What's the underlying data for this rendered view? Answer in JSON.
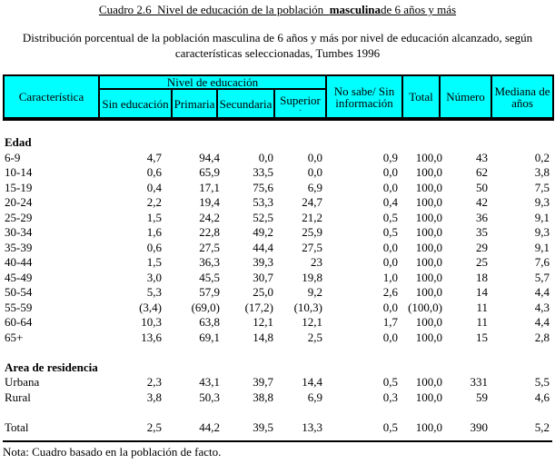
{
  "title": {
    "prefix": "Cuadro 2.6  Nivel de educación de la población  ",
    "bold": "masculina",
    "suffix": "de 6 años y más"
  },
  "subtitle": {
    "line1": "Distribución porcentual de la población masculina de 6 años y más por nivel de educación alcanzado, según",
    "line2": "características seleccionadas, Tumbes 1996"
  },
  "colors": {
    "header_bg": "#00FFFF",
    "border": "#000000",
    "text": "#000000"
  },
  "table": {
    "header": {
      "caracteristica": "Característica",
      "nivel_group": "Nivel de educación",
      "nivel_cols": [
        "Sin educación",
        "Primaria",
        "Secundaria",
        "Superior"
      ],
      "superior_dot": ".",
      "no_sabe": "No sabe/ Sin información",
      "total": "Total",
      "numero": "Número",
      "mediana": "Mediana de años"
    },
    "rows": [
      {
        "type": "section",
        "label": "Edad"
      },
      {
        "type": "data",
        "label": "6-9",
        "values": [
          "4,7",
          "94,4",
          "0,0",
          "0,0",
          "0,9",
          "100,0",
          "43",
          "0,2"
        ]
      },
      {
        "type": "data",
        "label": "10-14",
        "values": [
          "0,6",
          "65,9",
          "33,5",
          "0,0",
          "0,0",
          "100,0",
          "62",
          "3,8"
        ]
      },
      {
        "type": "data",
        "label": "15-19",
        "values": [
          "0,4",
          "17,1",
          "75,6",
          "6,9",
          "0,0",
          "100,0",
          "50",
          "7,5"
        ]
      },
      {
        "type": "data",
        "label": "20-24",
        "values": [
          "2,2",
          "19,4",
          "53,3",
          "24,7",
          "0,4",
          "100,0",
          "42",
          "9,3"
        ]
      },
      {
        "type": "data",
        "label": "25-29",
        "values": [
          "1,5",
          "24,2",
          "52,5",
          "21,2",
          "0,5",
          "100,0",
          "36",
          "9,1"
        ]
      },
      {
        "type": "data",
        "label": "30-34",
        "values": [
          "1,6",
          "22,8",
          "49,2",
          "25,9",
          "0,5",
          "100,0",
          "35",
          "9,3"
        ]
      },
      {
        "type": "data",
        "label": "35-39",
        "values": [
          "0,6",
          "27,5",
          "44,4",
          "27,5",
          "0,0",
          "100,0",
          "29",
          "9,1"
        ]
      },
      {
        "type": "data",
        "label": "40-44",
        "values": [
          "1,5",
          "36,3",
          "39,3",
          "23",
          "0,0",
          "100,0",
          "25",
          "7,6"
        ]
      },
      {
        "type": "data",
        "label": "45-49",
        "values": [
          "3,0",
          "45,5",
          "30,7",
          "19,8",
          "1,0",
          "100,0",
          "18",
          "5,7"
        ]
      },
      {
        "type": "data",
        "label": "50-54",
        "values": [
          "5,3",
          "57,9",
          "25,0",
          "9,2",
          "2,6",
          "100,0",
          "14",
          "4,4"
        ]
      },
      {
        "type": "data",
        "label": "55-59",
        "values": [
          "(3,4)",
          "(69,0)",
          "(17,2)",
          "(10,3)",
          "0,0",
          "(100,0)",
          "11",
          "4,3"
        ]
      },
      {
        "type": "data",
        "label": "60-64",
        "values": [
          "10,3",
          "63,8",
          "12,1",
          "12,1",
          "1,7",
          "100,0",
          "11",
          "4,4"
        ]
      },
      {
        "type": "data",
        "label": "65+",
        "values": [
          "13,6",
          "69,1",
          "14,8",
          "2,5",
          "0,0",
          "100,0",
          "15",
          "2,8"
        ]
      },
      {
        "type": "blank"
      },
      {
        "type": "section",
        "label": "Area de residencia"
      },
      {
        "type": "data",
        "label": "Urbana",
        "values": [
          "2,3",
          "43,1",
          "39,7",
          "14,4",
          "0,5",
          "100,0",
          "331",
          "5,5"
        ]
      },
      {
        "type": "data",
        "label": "Rural",
        "values": [
          "3,8",
          "50,3",
          "38,8",
          "6,9",
          "0,3",
          "100,0",
          "59",
          "4,6"
        ]
      },
      {
        "type": "blank"
      },
      {
        "type": "data",
        "label": "Total",
        "values": [
          "2,5",
          "44,2",
          "39,5",
          "13,3",
          "0,5",
          "100,0",
          "390",
          "5,2"
        ]
      }
    ]
  },
  "note": "Nota: Cuadro basado en la población de facto."
}
